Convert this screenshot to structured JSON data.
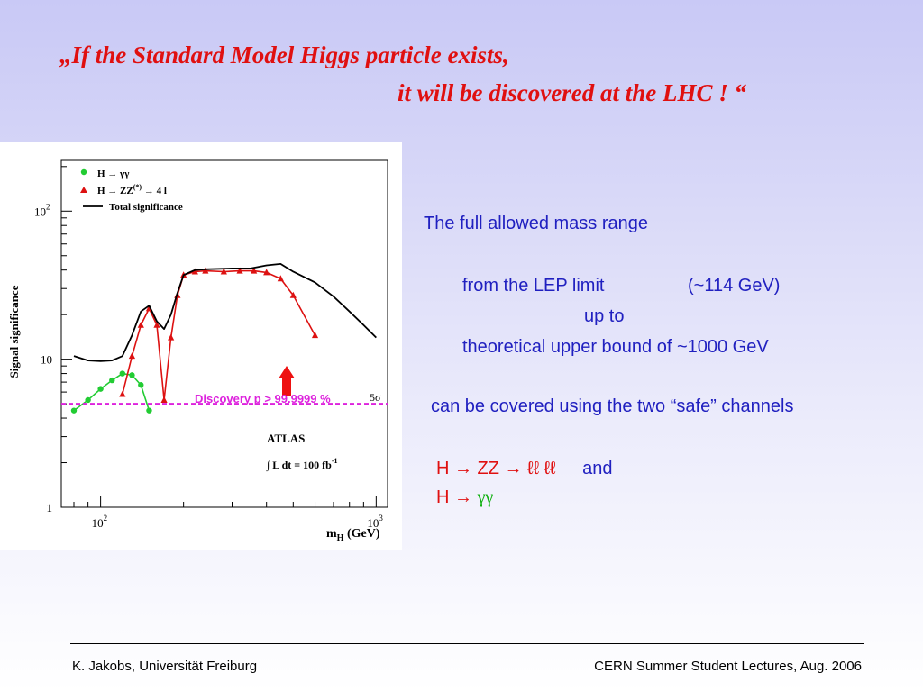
{
  "slide": {
    "title_line1": "„If  the Standard Model Higgs particle exists,",
    "title_line2": "it will be discovered at the LHC  ! “",
    "body": {
      "line1": "The full allowed mass range",
      "line2a": "from the LEP limit",
      "line2b": "(~114 GeV)",
      "line3": "up to",
      "line4": "theoretical upper bound of   ~1000 GeV",
      "line5": "can be covered using the two “safe” channels",
      "ch1": "H → ZZ → ℓℓ ℓℓ",
      "and": "and",
      "ch2_prefix": "H → ",
      "ch2_gamma": "γγ"
    },
    "footer": {
      "left": "K. Jakobs,  Universität Freiburg",
      "right": "CERN Summer Student Lectures,  Aug. 2006"
    }
  },
  "chart_data": {
    "type": "line",
    "ylabel": "Signal significance",
    "xlabel": "m",
    "xlabel_sub": "H",
    "xlabel_unit": "(GeV)",
    "x_scale": "log",
    "y_scale": "log",
    "xlim": [
      72,
      1100
    ],
    "ylim": [
      1,
      220
    ],
    "grid": false,
    "legend_position": "top-left",
    "x_ticks": [
      {
        "value": 100,
        "base": "10",
        "exp": "2"
      },
      {
        "value": 1000,
        "base": "10",
        "exp": "3"
      }
    ],
    "y_ticks": [
      {
        "value": 1,
        "label": "1"
      },
      {
        "value": 10,
        "label": "10"
      },
      {
        "value": 100,
        "base": "10",
        "exp": "2"
      }
    ],
    "series": [
      {
        "name": "H → γγ",
        "marker": "circle",
        "color": "#22cc33",
        "x": [
          80,
          90,
          100,
          110,
          120,
          130,
          140,
          150
        ],
        "y": [
          4.5,
          5.3,
          6.3,
          7.2,
          8.0,
          7.8,
          6.7,
          4.5
        ]
      },
      {
        "name": "H → ZZ(*) → 4 l",
        "name_prefix": "H  →  ZZ",
        "name_sup": "(*)",
        "name_suffix": "  →  4 l",
        "marker": "triangle",
        "color": "#dd1111",
        "x": [
          120,
          130,
          140,
          150,
          160,
          170,
          180,
          190,
          200,
          220,
          240,
          280,
          320,
          360,
          400,
          450,
          500,
          600
        ],
        "y": [
          5.8,
          10.5,
          17,
          22,
          17,
          5.3,
          14,
          27,
          37,
          39,
          39.5,
          39,
          39.5,
          39.5,
          38.5,
          35,
          27,
          14.5
        ]
      },
      {
        "name": "Total significance",
        "marker": "none",
        "color": "#000000",
        "x": [
          80,
          90,
          100,
          110,
          120,
          130,
          140,
          150,
          160,
          170,
          180,
          190,
          200,
          220,
          240,
          300,
          350,
          400,
          450,
          500,
          600,
          700,
          800,
          900,
          1000
        ],
        "y": [
          10.5,
          9.8,
          9.7,
          9.8,
          10.5,
          14.5,
          21,
          23,
          18,
          16,
          20,
          28,
          37,
          40,
          40.5,
          41,
          41,
          43,
          44,
          39,
          33,
          26.5,
          21,
          17,
          14
        ]
      }
    ],
    "threshold": {
      "value": 5,
      "label": "5σ",
      "color": "#dd22dd"
    },
    "annotations": {
      "discovery": "Discovery   p > 99.9999 %",
      "experiment": "ATLAS",
      "lumi_prefix": "∫ L dt = 100 fb",
      "lumi_exp": "-1"
    }
  },
  "colors": {
    "title": "#e01010",
    "body_text": "#2020c0",
    "channel_red": "#e01010",
    "channel_green": "#10b010",
    "discovery_text": "#dd22dd",
    "discovery_arrow": "#ee1111"
  }
}
